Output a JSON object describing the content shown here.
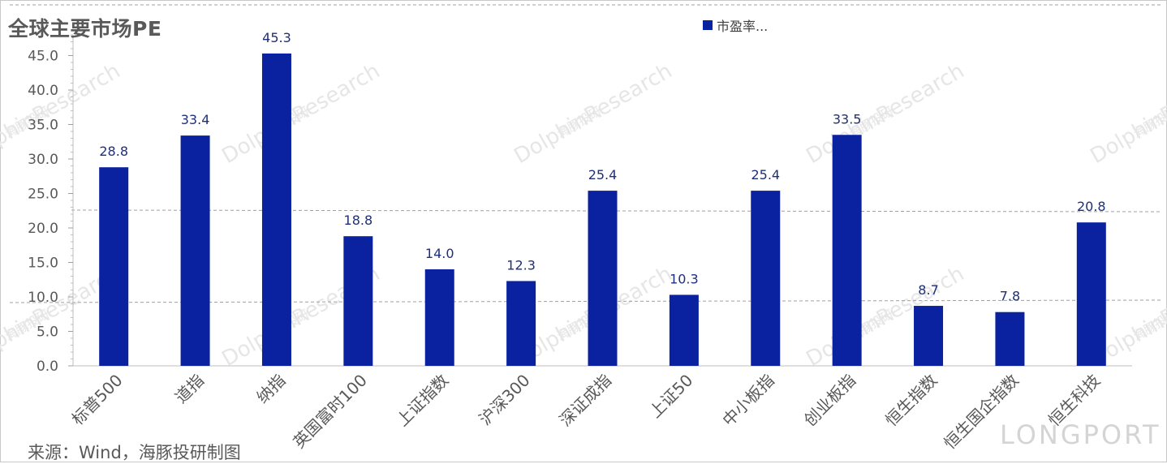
{
  "title": "全球主要市场PE",
  "source_note": "来源：Wind，海豚投研制图",
  "watermarks": {
    "brand_cn": "海豚投研",
    "brand_en": "DolphinResearch",
    "corner": "LONGPORT"
  },
  "colors": {
    "bar": "#0A22A0",
    "value_label": "#1F2F78",
    "axis_text": "#595959",
    "title": "#595959"
  },
  "chart_data": {
    "type": "bar",
    "title": "全球主要市场PE",
    "categories": [
      "标普500",
      "道指",
      "纳指",
      "英国富时100",
      "上证指数",
      "沪深300",
      "深证成指",
      "上证50",
      "中小板指",
      "创业板指",
      "恒生指数",
      "恒生国企指数",
      "恒生科技"
    ],
    "series": [
      {
        "name": "市盈率...",
        "values": [
          28.8,
          33.4,
          45.3,
          18.8,
          14.0,
          12.3,
          25.4,
          10.3,
          25.4,
          33.5,
          8.7,
          7.8,
          20.8
        ]
      }
    ],
    "value_labels": [
      "28.8",
      "33.4",
      "45.3",
      "18.8",
      "14.0",
      "12.3",
      "25.4",
      "10.3",
      "25.4",
      "33.5",
      "8.7",
      "7.8",
      "20.8"
    ],
    "yticks": [
      "0.0",
      "5.0",
      "10.0",
      "15.0",
      "20.0",
      "25.0",
      "30.0",
      "35.0",
      "40.0",
      "45.0"
    ],
    "ylim": [
      0,
      48
    ],
    "xlabel": "",
    "ylabel": "",
    "legend_position": "top",
    "grid": false
  }
}
